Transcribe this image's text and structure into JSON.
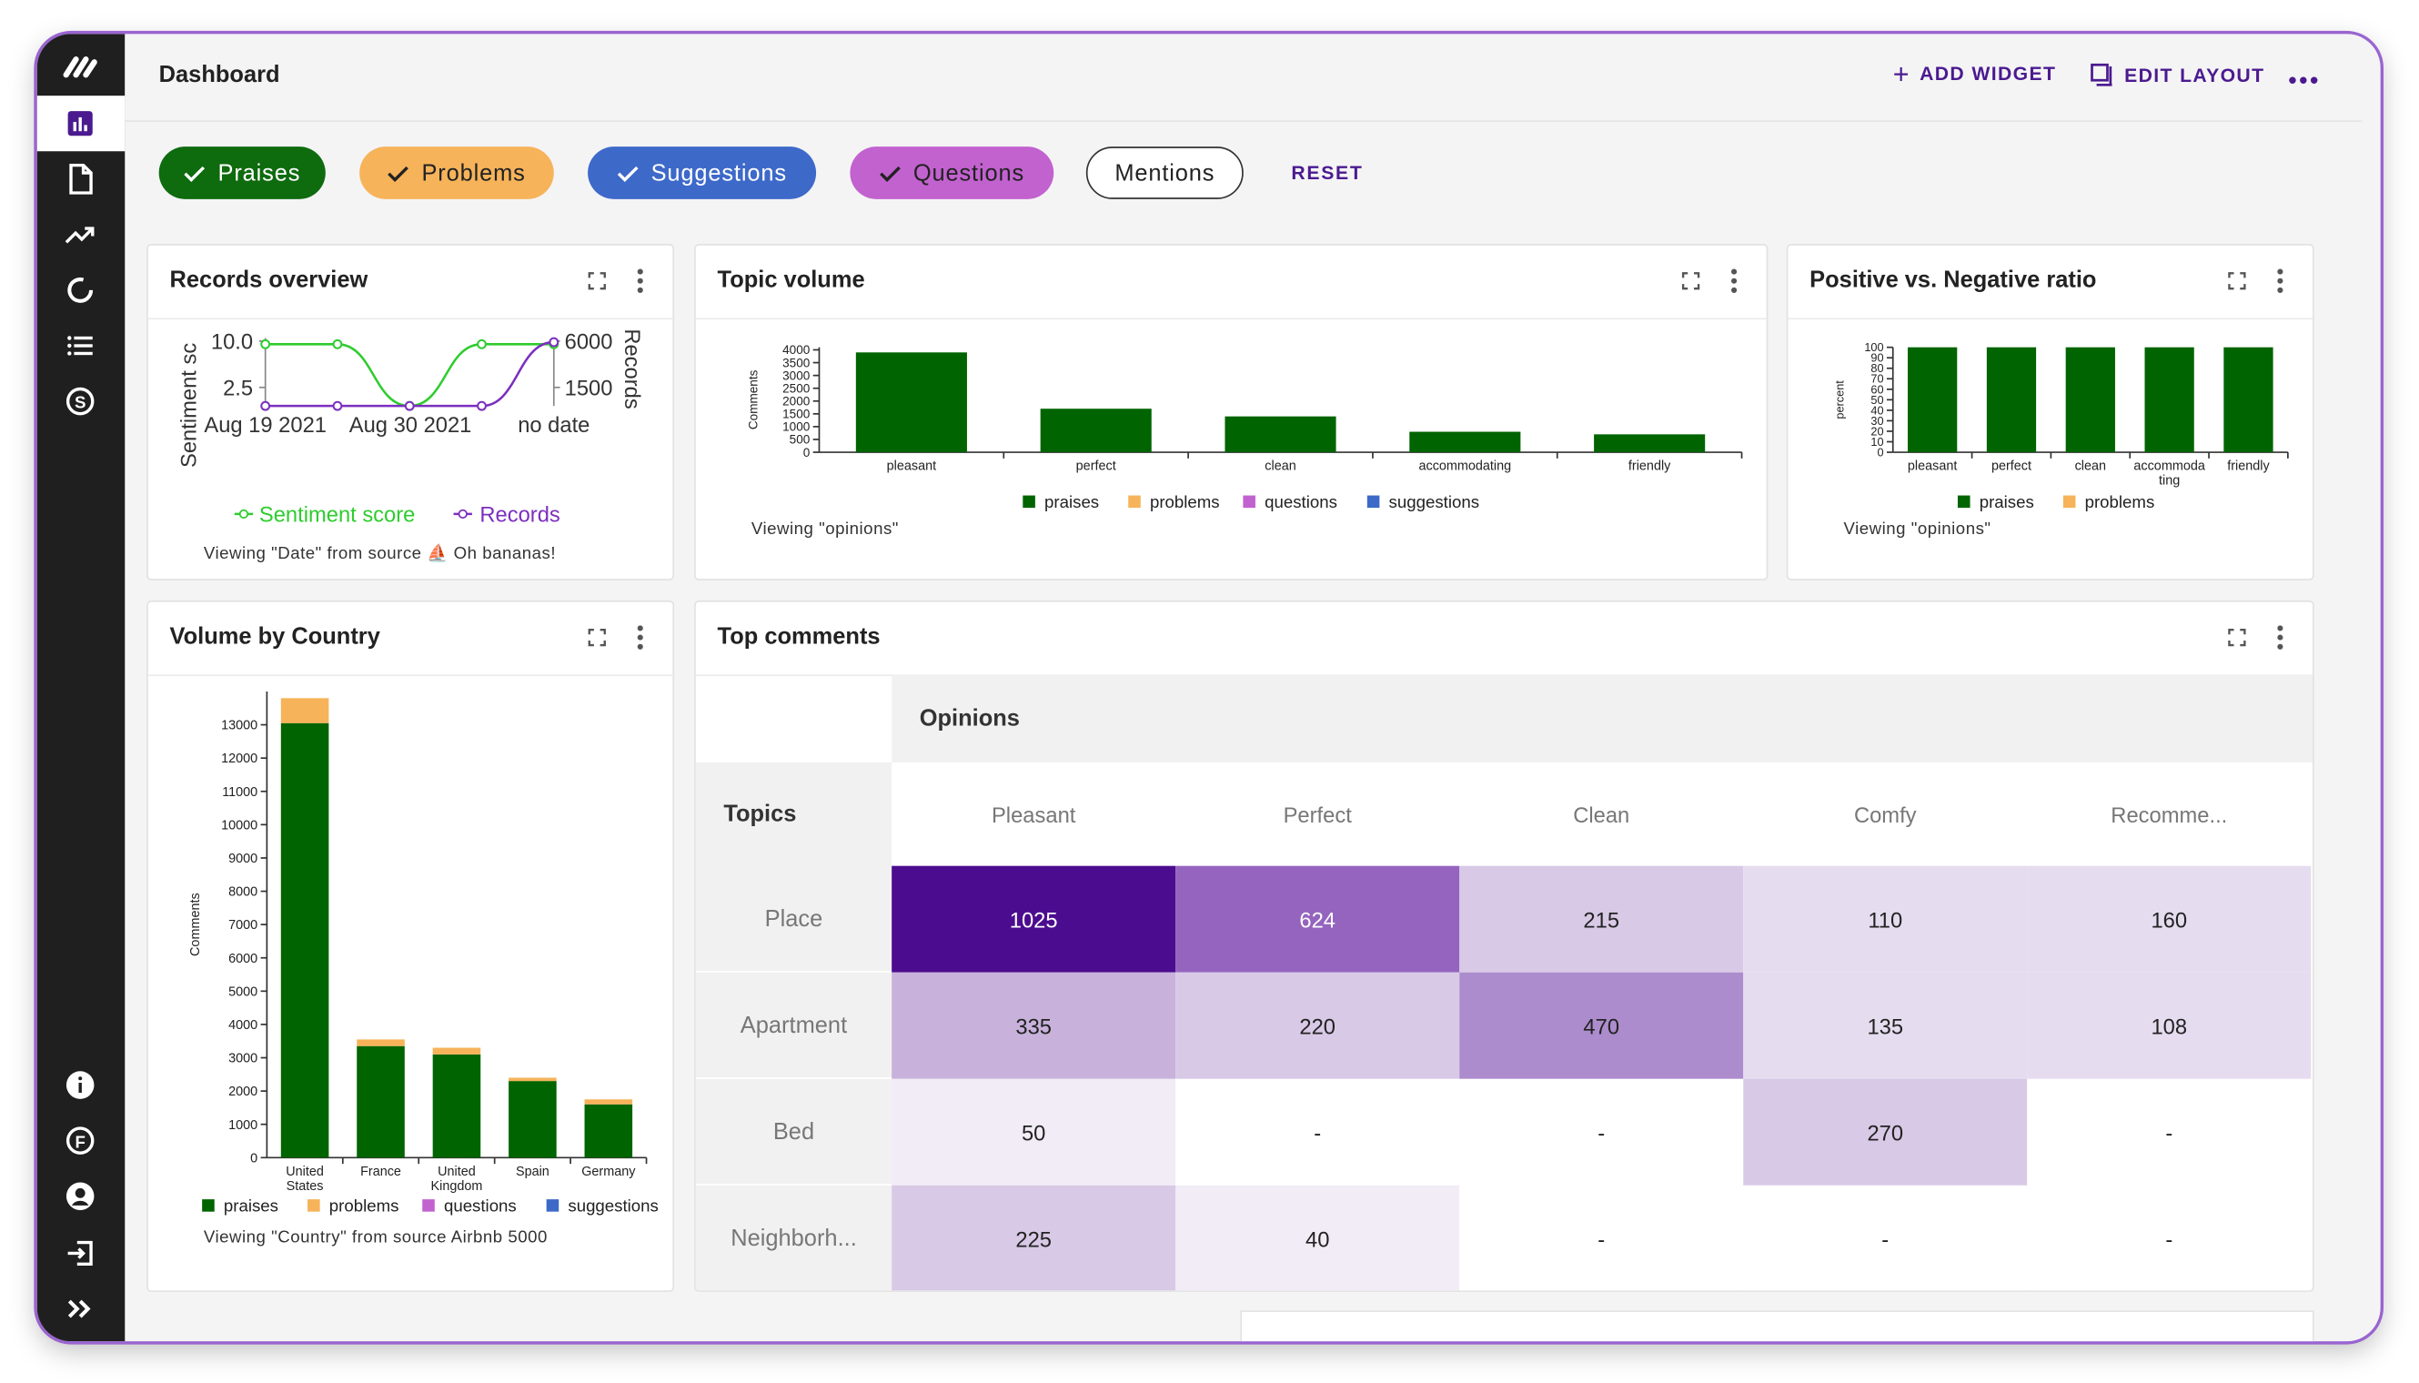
{
  "app": {
    "title": "Dashboard"
  },
  "header": {
    "add_widget": "ADD WIDGET",
    "edit_layout": "EDIT LAYOUT"
  },
  "filters": {
    "chips": [
      {
        "label": "Praises",
        "color": "#0e6b0e",
        "text_color": "#ffffff"
      },
      {
        "label": "Problems",
        "color": "#f6b35a",
        "text_color": "#222222"
      },
      {
        "label": "Suggestions",
        "color": "#3d69c9",
        "text_color": "#ffffff"
      },
      {
        "label": "Questions",
        "color": "#c262cf",
        "text_color": "#222222"
      },
      {
        "label": "Mentions",
        "color": "#ffffff",
        "text_color": "#222222"
      }
    ],
    "reset": "RESET"
  },
  "sidebar": {
    "icons": [
      "logo-icon",
      "bar-chart-icon",
      "document-icon",
      "trend-icon",
      "refresh-icon",
      "list-icon",
      "dollar-icon",
      "info-icon",
      "f-circle-icon",
      "user-icon",
      "logout-icon",
      "expand-chevrons-icon"
    ]
  },
  "colors": {
    "praises": "#006400",
    "problems": "#f6b35a",
    "questions": "#c262cf",
    "suggestions": "#3d69c9",
    "accent": "#4b1a8f"
  },
  "records_overview": {
    "title": "Records overview",
    "caption": "Viewing \"Date\" from source ⛵ Oh bananas!",
    "chart_data": {
      "type": "line",
      "x": [
        "Aug 19 2021",
        "",
        "Aug 30 2021",
        "",
        "no date"
      ],
      "x_ticks": [
        "Aug 19 2021",
        "Aug 30 2021",
        "no date"
      ],
      "ylabel": "Sentiment sc",
      "y2label": "Records",
      "y_ticks": [
        "10.0",
        "2.5"
      ],
      "y2_ticks": [
        "6000",
        "1500"
      ],
      "series": [
        {
          "name": "Sentiment score",
          "color": "#2ecc2e",
          "values": [
            10.0,
            10.0,
            0,
            10.0,
            10.0
          ]
        },
        {
          "name": "Records",
          "color": "#7b2fbf",
          "values": [
            0,
            0,
            0,
            0,
            6000
          ]
        }
      ]
    }
  },
  "topic_volume": {
    "title": "Topic volume",
    "caption": "Viewing \"opinions\"",
    "chart_data": {
      "type": "bar",
      "categories": [
        "pleasant",
        "perfect",
        "clean",
        "accommodating",
        "friendly"
      ],
      "ylabel": "Comments",
      "y_ticks": [
        "4000",
        "3500",
        "3000",
        "2500",
        "2000",
        "1500",
        "1000",
        "500",
        "0"
      ],
      "ylim": [
        0,
        4100
      ],
      "series": [
        {
          "name": "praises",
          "values": [
            3900,
            1700,
            1400,
            800,
            700
          ]
        },
        {
          "name": "problems",
          "values": [
            0,
            0,
            0,
            0,
            0
          ]
        },
        {
          "name": "questions",
          "values": [
            0,
            0,
            0,
            0,
            0
          ]
        },
        {
          "name": "suggestions",
          "values": [
            0,
            0,
            0,
            0,
            0
          ]
        }
      ],
      "legend": [
        "praises",
        "problems",
        "questions",
        "suggestions"
      ]
    }
  },
  "pos_neg": {
    "title": "Positive vs. Negative ratio",
    "caption": "Viewing \"opinions\"",
    "chart_data": {
      "type": "bar",
      "categories": [
        "pleasant",
        "perfect",
        "clean",
        "accommoda ting",
        "friendly"
      ],
      "ylabel": "percent",
      "y_ticks": [
        "100",
        "90",
        "80",
        "70",
        "60",
        "50",
        "40",
        "30",
        "20",
        "10",
        "0"
      ],
      "ylim": [
        0,
        100
      ],
      "series": [
        {
          "name": "praises",
          "values": [
            100,
            100,
            100,
            100,
            100
          ]
        },
        {
          "name": "problems",
          "values": [
            0,
            0,
            0,
            0,
            0
          ]
        }
      ],
      "legend": [
        "praises",
        "problems"
      ]
    }
  },
  "volume_by_country": {
    "title": "Volume by Country",
    "caption": "Viewing \"Country\" from source Airbnb 5000",
    "chart_data": {
      "type": "bar",
      "categories": [
        "United States",
        "France",
        "United Kingdom",
        "Spain",
        "Germany"
      ],
      "ylabel": "Comments",
      "y_ticks": [
        "13000",
        "12000",
        "11000",
        "10000",
        "9000",
        "8000",
        "7000",
        "6000",
        "5000",
        "4000",
        "3000",
        "2000",
        "1000",
        "0"
      ],
      "ylim": [
        0,
        14000
      ],
      "series": [
        {
          "name": "praises",
          "values": [
            13050,
            3350,
            3100,
            2300,
            1600
          ]
        },
        {
          "name": "problems",
          "values": [
            750,
            200,
            200,
            100,
            150
          ]
        },
        {
          "name": "questions",
          "values": [
            0,
            0,
            0,
            0,
            0
          ]
        },
        {
          "name": "suggestions",
          "values": [
            0,
            0,
            0,
            0,
            0
          ]
        }
      ],
      "legend": [
        "praises",
        "problems",
        "questions",
        "suggestions"
      ]
    }
  },
  "top_comments": {
    "title": "Top comments",
    "col_group": "Opinions",
    "row_group": "Topics",
    "columns": [
      "Pleasant",
      "Perfect",
      "Clean",
      "Comfy",
      "Recomme..."
    ],
    "rows": [
      {
        "label": "Place",
        "values": [
          "1025",
          "624",
          "215",
          "110",
          "160"
        ],
        "levels": [
          1.0,
          0.6,
          0.21,
          0.11,
          0.16
        ]
      },
      {
        "label": "Apartment",
        "values": [
          "335",
          "220",
          "470",
          "135",
          "108"
        ],
        "levels": [
          0.33,
          0.22,
          0.46,
          0.13,
          0.11
        ]
      },
      {
        "label": "Bed",
        "values": [
          "50",
          "-",
          "-",
          "270",
          "-"
        ],
        "levels": [
          0.05,
          0,
          0,
          0.26,
          0
        ]
      },
      {
        "label": "Neighborh...",
        "values": [
          "225",
          "40",
          "-",
          "-",
          "-"
        ],
        "levels": [
          0.22,
          0.04,
          0,
          0,
          0
        ]
      }
    ]
  }
}
